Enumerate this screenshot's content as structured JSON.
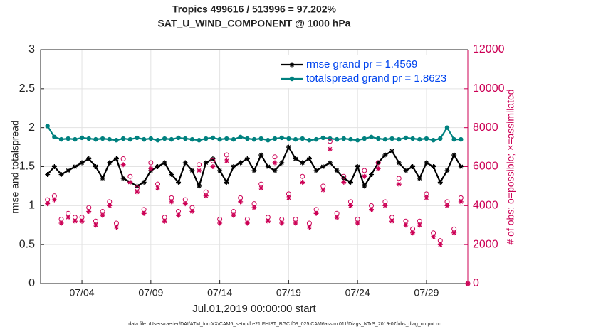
{
  "chart_data": {
    "type": "line",
    "title": "Tropics 499616 / 513996 = 97.202%",
    "subtitle": "SAT_U_WIND_COMPONENT @ 1000 hPa",
    "xlabel": "Jul.01,2019 00:00:00 start",
    "ylabel": "rmse and totalspread",
    "y2label": "# of obs: o=possible; ×=assimilated",
    "footnote": "data file: /Users/raeder/DAI/ATM_forcXX/CAM6_setup/f.e21.FHIST_BGC.f09_025.CAM6assim.011/Diags_NTrS_2019-07/obs_diag_output.nc",
    "grid": true,
    "legend": "upper right",
    "legend_text_color": "#0044ee",
    "y2_color": "#cc0055",
    "xlim": [
      0,
      31
    ],
    "xticks": [
      {
        "value": 3,
        "label": "07/04"
      },
      {
        "value": 8,
        "label": "07/09"
      },
      {
        "value": 13,
        "label": "07/14"
      },
      {
        "value": 18,
        "label": "07/19"
      },
      {
        "value": 23,
        "label": "07/24"
      },
      {
        "value": 28,
        "label": "07/29"
      }
    ],
    "ylim": [
      0,
      3
    ],
    "yticks": [
      0,
      0.5,
      1,
      1.5,
      2,
      2.5,
      3
    ],
    "y2lim": [
      0,
      12000
    ],
    "y2ticks": [
      0,
      2000,
      4000,
      6000,
      8000,
      10000,
      12000
    ],
    "x": [
      0.5,
      1,
      1.5,
      2,
      2.5,
      3,
      3.5,
      4,
      4.5,
      5,
      5.5,
      6,
      6.5,
      7,
      7.5,
      8,
      8.5,
      9,
      9.5,
      10,
      10.5,
      11,
      11.5,
      12,
      12.5,
      13,
      13.5,
      14,
      14.5,
      15,
      15.5,
      16,
      16.5,
      17,
      17.5,
      18,
      18.5,
      19,
      19.5,
      20,
      20.5,
      21,
      21.5,
      22,
      22.5,
      23,
      23.5,
      24,
      24.5,
      25,
      25.5,
      26,
      26.5,
      27,
      27.5,
      28,
      28.5,
      29,
      29.5,
      30,
      30.5,
      31
    ],
    "series": [
      {
        "name": "rmse grand pr = 1.4569",
        "color": "#000000",
        "marker": "asterisk",
        "line": true,
        "values": [
          1.4,
          1.5,
          1.4,
          1.45,
          1.5,
          1.55,
          1.6,
          1.5,
          1.35,
          1.55,
          1.6,
          1.35,
          1.3,
          1.25,
          1.3,
          1.45,
          1.5,
          1.55,
          1.4,
          1.3,
          1.55,
          1.45,
          1.25,
          1.55,
          1.6,
          1.45,
          1.3,
          1.5,
          1.55,
          1.6,
          1.45,
          1.65,
          1.5,
          1.45,
          1.55,
          1.75,
          1.6,
          1.55,
          1.6,
          1.45,
          1.5,
          1.55,
          1.45,
          1.35,
          1.3,
          1.5,
          1.25,
          1.4,
          1.55,
          1.65,
          1.7,
          1.55,
          1.45,
          1.5,
          1.35,
          1.55,
          1.5,
          1.3,
          1.45,
          1.65,
          1.5,
          null
        ]
      },
      {
        "name": "totalspread grand pr = 1.8623",
        "color": "#00817f",
        "marker": "circle-filled",
        "line": true,
        "values": [
          2.02,
          1.88,
          1.85,
          1.86,
          1.85,
          1.87,
          1.86,
          1.85,
          1.86,
          1.85,
          1.84,
          1.86,
          1.85,
          1.87,
          1.85,
          1.86,
          1.84,
          1.86,
          1.85,
          1.87,
          1.86,
          1.85,
          1.84,
          1.86,
          1.87,
          1.85,
          1.86,
          1.85,
          1.88,
          1.86,
          1.85,
          1.86,
          1.84,
          1.86,
          1.87,
          1.86,
          1.85,
          1.86,
          1.84,
          1.85,
          1.87,
          1.86,
          1.85,
          1.86,
          1.85,
          1.84,
          1.86,
          1.88,
          1.86,
          1.85,
          1.86,
          1.85,
          1.87,
          1.86,
          1.85,
          1.86,
          1.84,
          1.86,
          2.0,
          1.85,
          1.85,
          null
        ]
      },
      {
        "color": "#cc0055",
        "marker": "circle-open",
        "line": false,
        "axis": "y2",
        "values": [
          4300,
          4500,
          3300,
          3600,
          3400,
          3400,
          3900,
          3200,
          3700,
          4200,
          3100,
          6400,
          5500,
          4900,
          3800,
          6200,
          5100,
          3400,
          4400,
          3700,
          4300,
          3900,
          6100,
          4700,
          6300,
          3300,
          6600,
          3700,
          4400,
          3300,
          4100,
          5100,
          3400,
          6500,
          3300,
          4600,
          3300,
          5500,
          3100,
          3800,
          5000,
          7300,
          3600,
          5500,
          4200,
          3300,
          5800,
          4000,
          6200,
          4200,
          3400,
          5400,
          3200,
          2800,
          3200,
          4600,
          2600,
          2200,
          4200,
          2800,
          4400,
          0
        ]
      },
      {
        "color": "#cc0055",
        "marker": "asterisk",
        "line": false,
        "axis": "y2",
        "values": [
          4100,
          4300,
          3100,
          3400,
          3200,
          3200,
          3700,
          3000,
          3500,
          4000,
          2900,
          6100,
          5200,
          4700,
          3600,
          5900,
          4900,
          3200,
          4200,
          3500,
          4100,
          3700,
          5800,
          4500,
          6000,
          3100,
          6300,
          3500,
          4200,
          3100,
          3900,
          4900,
          3200,
          6200,
          3100,
          4400,
          3100,
          5200,
          2900,
          3600,
          4800,
          6900,
          3400,
          5200,
          4000,
          3100,
          5500,
          3800,
          5900,
          4000,
          3200,
          5100,
          3000,
          2600,
          3000,
          4400,
          2400,
          2000,
          4000,
          2600,
          4200,
          0
        ]
      }
    ]
  }
}
